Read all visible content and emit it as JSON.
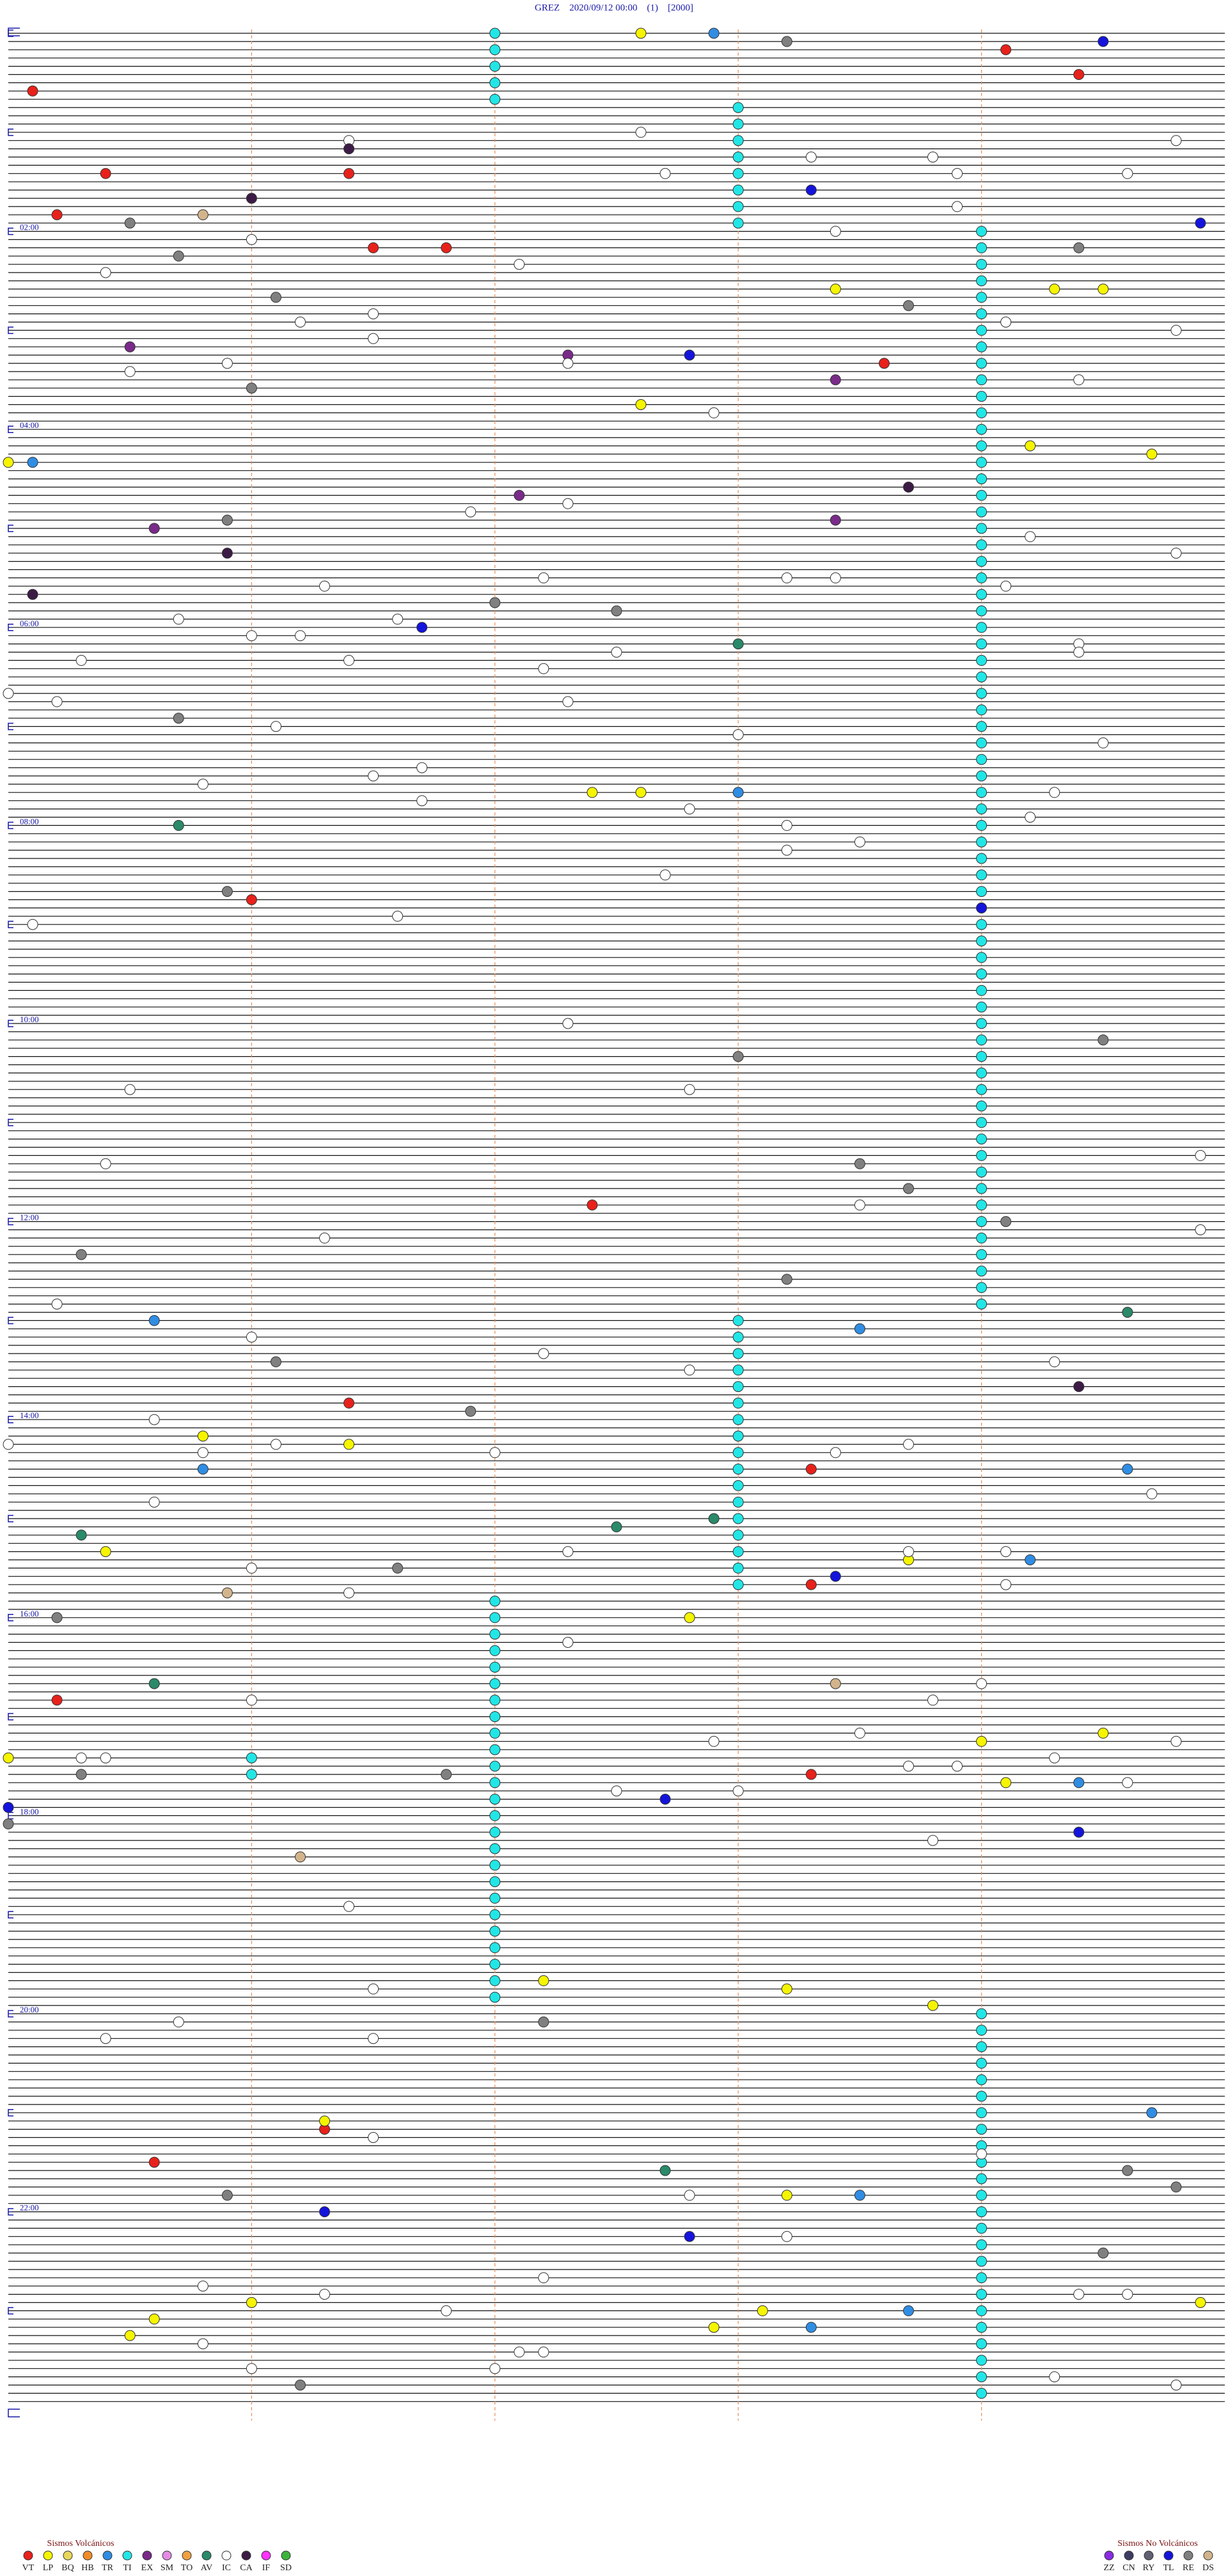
{
  "chart_data": {
    "type": "helicorder",
    "title": "GREZ    2020/09/12 00:00    (1)    [2000]",
    "xlim": [
      0,
      5
    ],
    "xticks": [
      1,
      2,
      3,
      4
    ],
    "ylim": [
      0,
      1440
    ],
    "grid": true,
    "yticks": [
      {
        "value": 120,
        "label": "02:00"
      },
      {
        "value": 240,
        "label": "04:00"
      },
      {
        "value": 360,
        "label": "06:00"
      },
      {
        "value": 480,
        "label": "08:00"
      },
      {
        "value": 600,
        "label": "10:00"
      },
      {
        "value": 720,
        "label": "12:00"
      },
      {
        "value": 840,
        "label": "14:00"
      },
      {
        "value": 960,
        "label": "16:00"
      },
      {
        "value": 1080,
        "label": "18:00"
      },
      {
        "value": 1200,
        "label": "20:00"
      },
      {
        "value": 1320,
        "label": "22:00"
      }
    ],
    "legend_groups": [
      {
        "title": "Sismos Volcánicos",
        "series": [
          {
            "name": "VT",
            "color": "#e8211b",
            "values": [
              14.1,
              29.4,
              35.1,
              85.4,
              86.4,
              110.2,
              131.5,
              131.8,
              203.6,
              526,
              712.4,
              831.4,
              873.3,
              943.3,
              1010.2,
              1058.3,
              1271.3,
              1290.6
            ]
          },
          {
            "name": "LP",
            "color": "#f5f500",
            "values": [
              2.6,
              158.4,
              159.3,
              159.5,
              227.6,
              254.2,
              259.7,
              260,
              462.4,
              462.6,
              850.8,
              856.4,
              920.4,
              928.7,
              962.8,
              1034.5,
              1039,
              1045,
              1064.1,
              1182.2,
              1188.2,
              1198.8,
              1266.3,
              1313.2,
              1376,
              1379.9,
              1383.1,
              1385.6,
              1392.9,
              1395.5
            ]
          },
          {
            "name": "BQ",
            "color": "#e8d85a",
            "values": []
          },
          {
            "name": "HB",
            "color": "#f08c28",
            "values": []
          },
          {
            "name": "TR",
            "color": "#2f8de4",
            "values": [
              2.9,
              260.1,
              463,
              780.6,
              788.5,
              870.8,
              874.6,
              929.2,
              1064.4,
              1264.7,
              1313.5,
              1383.7,
              1393.3
            ]
          },
          {
            "name": "TI",
            "color": "#22e6e6",
            "values": [
              2,
              12,
              22,
              32,
              42,
              48,
              58,
              68,
              78,
              88,
              98,
              108,
              118,
              124,
              134,
              144,
              154,
              164,
              174,
              184,
              194,
              204,
              214,
              224,
              234,
              244,
              254,
              264,
              274,
              284,
              294,
              304,
              314,
              324,
              334,
              344,
              354,
              364,
              374,
              384,
              394,
              404,
              414,
              424,
              434,
              444,
              454,
              464,
              474,
              484,
              494,
              504,
              514,
              524,
              534,
              544,
              554,
              564,
              574,
              584,
              594,
              604,
              614,
              624,
              634,
              644,
              654,
              664,
              674,
              684,
              694,
              704,
              714,
              724,
              734,
              744,
              754,
              764,
              774,
              783,
              793,
              803,
              813,
              823,
              833,
              843,
              853,
              863,
              873,
              883,
              893,
              903,
              913,
              923,
              933,
              943,
              952,
              962,
              972,
              982,
              992,
              1002,
              1012,
              1022,
              1032,
              1042,
              1046,
              1052,
              1056,
              1062,
              1072,
              1082,
              1092,
              1102,
              1112,
              1122,
              1132,
              1142,
              1152,
              1162,
              1172,
              1182,
              1192,
              1204,
              1214,
              1224,
              1234,
              1244,
              1254,
              1264,
              1274,
              1284,
              1294,
              1304,
              1314,
              1324,
              1334,
              1344,
              1354,
              1364,
              1374,
              1384,
              1394,
              1404,
              1414,
              1424,
              1434
            ]
          },
          {
            "name": "EX",
            "color": "#7a2a8a",
            "values": [
              190.5,
              197.3,
              213.4,
              282.1,
              298.4,
              300.6
            ]
          },
          {
            "name": "SM",
            "color": "#e48ce4",
            "values": []
          },
          {
            "name": "TO",
            "color": "#f0a040",
            "values": []
          },
          {
            "name": "AV",
            "color": "#2a8a6a",
            "values": [
              373,
              480.7,
              779.6,
              902.9,
              907.5,
              910.3,
              1000.6,
              1297.7
            ]
          },
          {
            "name": "IC",
            "color": "#ffffff",
            "values": [
              62.6,
              66.4,
              69.8,
              78.3,
              78.8,
              87.7,
              88.9,
              89.6,
              108.9,
              123.4,
              126,
              142.1,
              145.4,
              171.5,
              176.2,
              179.1,
              184.8,
              186.5,
              200.9,
              202.3,
              205.5,
              214.4,
              232.9,
              287.3,
              291.9,
              309.2,
              319.8,
              332.2,
              333.2,
              333.4,
              336.3,
              339.1,
              355.7,
              356.6,
              366,
              366.2,
              374.4,
              377.5,
              379.4,
              380.3,
              381.4,
              387.2,
              400,
              405.2,
              407.3,
              421.1,
              428,
              434.5,
              446.7,
              451.5,
              455.8,
              464.3,
              466.7,
              472.8,
              479.2,
              483.2,
              493.5,
              498.2,
              512.7,
              536.6,
              540.1,
              602.3,
              640.5,
              642.8,
              684.9,
              685.4,
              713.5,
              729.9,
              731.3,
              770.2,
              791,
              802.2,
              809.3,
              812.8,
              840.6,
              855,
              856.1,
              858.7,
              860.8,
              862,
              863.4,
              889.7,
              890.6,
              922.3,
              923.7,
              924.1,
              931,
              944.1,
              946.4,
              977.3,
              1004,
              1011,
              1013.8,
              1033.5,
              1037.9,
              1039.8,
              1045.3,
              1045.4,
              1049.3,
              1053.7,
              1053.9,
              1064.6,
              1067.5,
              1068,
              1098.8,
              1136.4,
              1186.5,
              1205.7,
              1215.4,
              1216.5,
              1276.5,
              1289,
              1312.8,
              1338.2,
              1362.2,
              1365.8,
              1371.3,
              1374.4,
              1374.6,
              1381.8,
              1400.8,
              1407.1,
              1407.2,
              1416,
              1417,
              1424.3,
              1429.8
            ]
          },
          {
            "name": "CA",
            "color": "#3c1c46",
            "values": [
              71.4,
              101,
              278.7,
              315.9,
              340.1,
              824.4
            ]
          },
          {
            "name": "IF",
            "color": "#ff33ff",
            "values": []
          },
          {
            "name": "SD",
            "color": "#3cb43c",
            "values": []
          }
        ]
      },
      {
        "title": "Sismos No Volcánicos",
        "series": [
          {
            "name": "ZZ",
            "color": "#8a2be2",
            "values": []
          },
          {
            "name": "CN",
            "color": "#3c3c64",
            "values": []
          },
          {
            "name": "RY",
            "color": "#606070",
            "values": []
          },
          {
            "name": "TL",
            "color": "#1414dc",
            "values": [
              9.5,
              98.3,
              119.9,
              197.8,
              361.7,
              534,
              938.4,
              1072.7,
              1075,
              1094.4,
              1321.3,
              1337.8
            ]
          },
          {
            "name": "RE",
            "color": "#808080",
            "values": [
              8.2,
              115.5,
              134.4,
              135.7,
              161.1,
              168.7,
              216,
              295.9,
              347,
              352.5,
              415.7,
              520.9,
              614.5,
              623,
              688.5,
              703.7,
              724.1,
              740.3,
              758.2,
              806.1,
              836.9,
              931.6,
              960.2,
              1055.3,
              1056.8,
              1085,
              1207.2,
              1299.6,
              1309.8,
              1310.9,
              1349.5,
              1426.2
            ]
          },
          {
            "name": "DS",
            "color": "#d2b48c",
            "values": [
              110.8,
              945.9,
              1003.4,
              1106.2
            ]
          }
        ]
      }
    ]
  }
}
